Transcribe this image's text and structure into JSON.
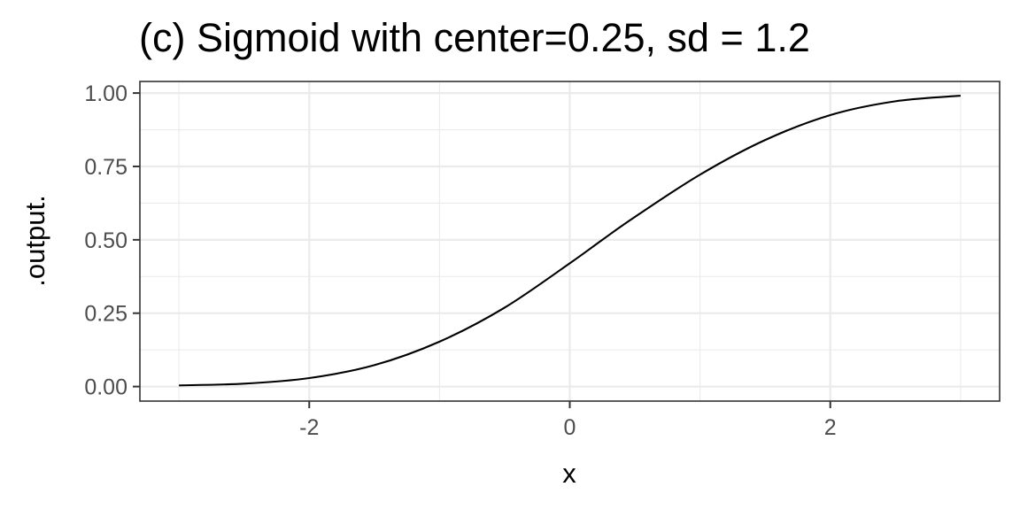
{
  "chart_data": {
    "type": "line",
    "title": "(c) Sigmoid with center=0.25, sd = 1.2",
    "xlabel": "x",
    "ylabel": ".output.",
    "xlim": [
      -3.3,
      3.3
    ],
    "ylim": [
      -0.0495,
      1.0395
    ],
    "x_ticks": [
      -2,
      0,
      2
    ],
    "x_tick_labels": [
      "-2",
      "0",
      "2"
    ],
    "y_ticks": [
      0,
      0.25,
      0.5,
      0.75,
      1
    ],
    "y_tick_labels": [
      "0.00",
      "0.25",
      "0.50",
      "0.75",
      "1.00"
    ],
    "x_minor_ticks": [
      -3,
      -1,
      1,
      3
    ],
    "y_minor_ticks": [
      0.125,
      0.375,
      0.625,
      0.875
    ],
    "grid": true,
    "legend": "none",
    "series": [
      {
        "color": "#000000",
        "x": [
          -3,
          -2.5,
          -2,
          -1.5,
          -1,
          -0.5,
          0,
          0.25,
          0.5,
          1,
          1.5,
          2,
          2.5,
          3
        ],
        "y": [
          0.004,
          0.01,
          0.029,
          0.073,
          0.153,
          0.269,
          0.42,
          0.5,
          0.578,
          0.722,
          0.84,
          0.925,
          0.972,
          0.991
        ]
      }
    ]
  }
}
